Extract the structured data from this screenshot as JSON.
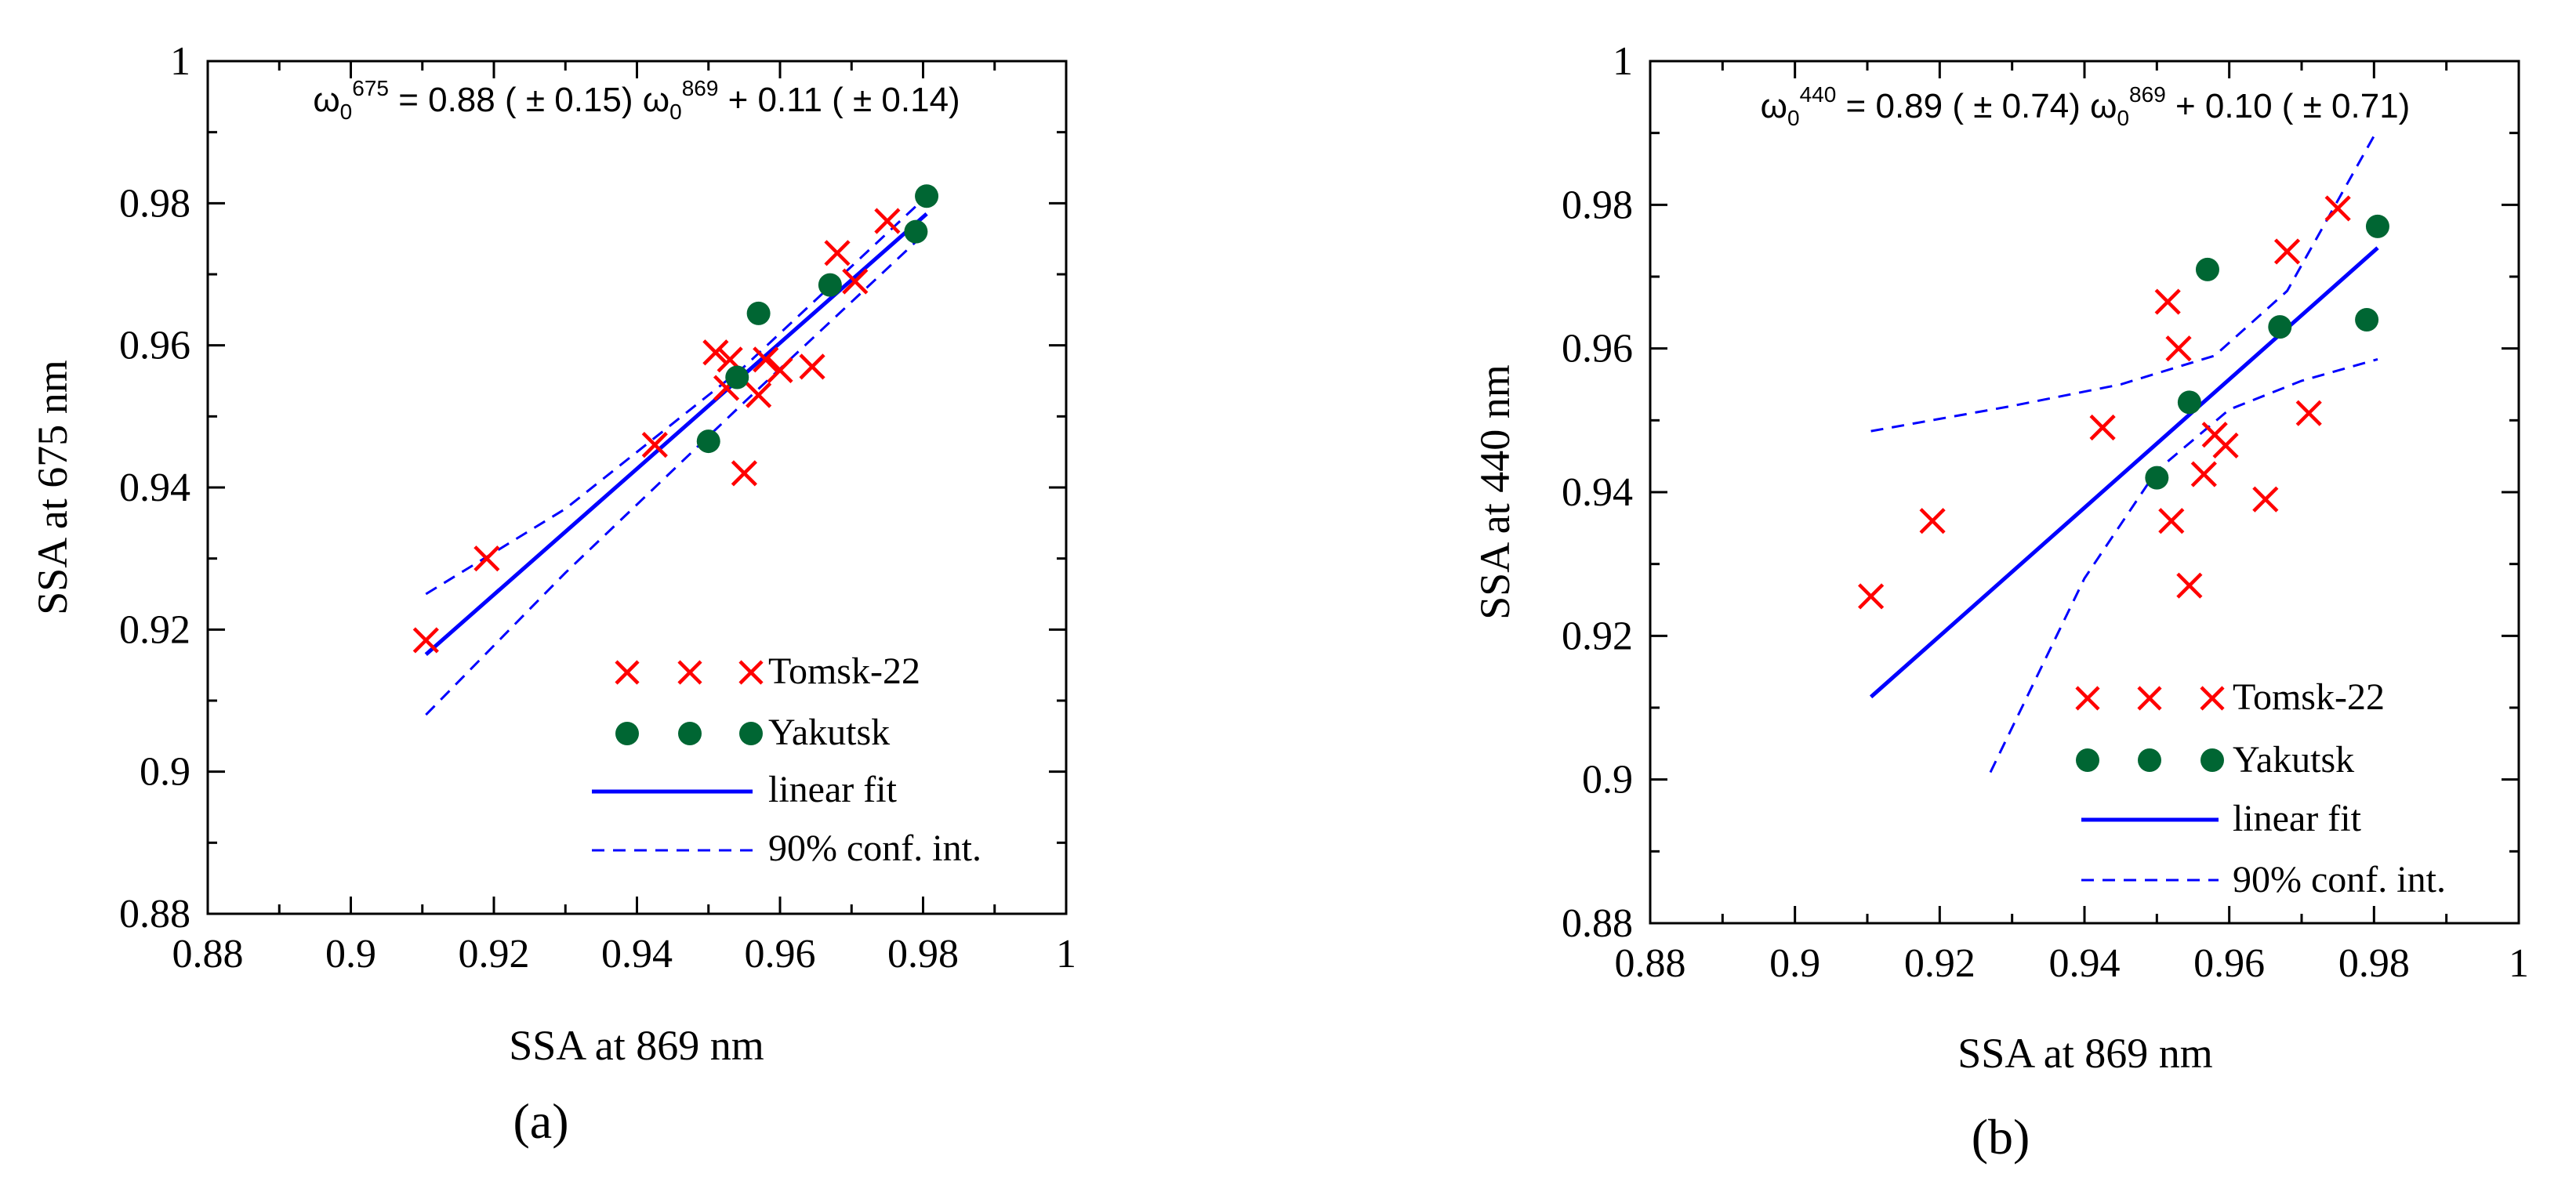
{
  "chart_data": [
    {
      "type": "scatter",
      "panel_label": "(a)",
      "equation": {
        "lhs_symbol": "ω",
        "lhs_sub": "0",
        "lhs_sup": "675",
        "mid": " = 0.88 ( ± 0.15) ",
        "rhs_symbol": "ω",
        "rhs_sub": "0",
        "rhs_sup": "869",
        "tail": " + 0.11 ( ± 0.14)"
      },
      "xlabel": "SSA at 869 nm",
      "ylabel": "SSA at 675 nm",
      "xlim": [
        0.88,
        1.0
      ],
      "ylim": [
        0.88,
        1.0
      ],
      "xticks": [
        "0.88",
        "0.9",
        "0.92",
        "0.94",
        "0.96",
        "0.98",
        "1"
      ],
      "yticks": [
        "0.88",
        "0.9",
        "0.92",
        "0.94",
        "0.96",
        "0.98",
        "1"
      ],
      "legend": {
        "position": "bottom-right",
        "entries": [
          "Tomsk-22",
          "Yakutsk",
          "linear fit",
          "90% conf. int."
        ]
      },
      "colors": {
        "tomsk": "#ff0000",
        "yakutsk": "#006633",
        "fit": "#0000ff"
      },
      "series": [
        {
          "name": "Tomsk-22",
          "marker": "x",
          "points": [
            [
              0.9105,
              0.9185
            ],
            [
              0.919,
              0.93
            ],
            [
              0.9425,
              0.946
            ],
            [
              0.951,
              0.959
            ],
            [
              0.953,
              0.958
            ],
            [
              0.9525,
              0.954
            ],
            [
              0.955,
              0.942
            ],
            [
              0.957,
              0.953
            ],
            [
              0.958,
              0.958
            ],
            [
              0.96,
              0.9565
            ],
            [
              0.9645,
              0.957
            ],
            [
              0.968,
              0.973
            ],
            [
              0.9705,
              0.969
            ],
            [
              0.975,
              0.9775
            ]
          ]
        },
        {
          "name": "Yakutsk",
          "marker": "dot",
          "points": [
            [
              0.95,
              0.9465
            ],
            [
              0.954,
              0.9555
            ],
            [
              0.957,
              0.9645
            ],
            [
              0.967,
              0.9685
            ],
            [
              0.979,
              0.976
            ],
            [
              0.9805,
              0.981
            ]
          ]
        },
        {
          "name": "linear fit",
          "line": [
            [
              0.9105,
              0.9165
            ],
            [
              0.9805,
              0.9785
            ]
          ]
        },
        {
          "name": "90% conf. int. (upper)",
          "line": [
            [
              0.9105,
              0.925
            ],
            [
              0.93,
              0.937
            ],
            [
              0.955,
              0.957
            ],
            [
              0.9805,
              0.981
            ]
          ]
        },
        {
          "name": "90% conf. int. (lower)",
          "line": [
            [
              0.9105,
              0.908
            ],
            [
              0.93,
              0.928
            ],
            [
              0.955,
              0.952
            ],
            [
              0.9805,
              0.976
            ]
          ]
        }
      ]
    },
    {
      "type": "scatter",
      "panel_label": "(b)",
      "equation": {
        "lhs_symbol": "ω",
        "lhs_sub": "0",
        "lhs_sup": "440",
        "mid": " = 0.89 ( ± 0.74) ",
        "rhs_symbol": "ω",
        "rhs_sub": "0",
        "rhs_sup": "869",
        "tail": " + 0.10 ( ± 0.71)"
      },
      "xlabel": "SSA at 869 nm",
      "ylabel": "SSA at 440 nm",
      "xlim": [
        0.88,
        1.0
      ],
      "ylim": [
        0.88,
        1.0
      ],
      "xticks": [
        "0.88",
        "0.9",
        "0.92",
        "0.94",
        "0.96",
        "0.98",
        "1"
      ],
      "yticks": [
        "0.88",
        "0.9",
        "0.92",
        "0.94",
        "0.96",
        "0.98",
        "1"
      ],
      "legend": {
        "position": "bottom-right",
        "entries": [
          "Tomsk-22",
          "Yakutsk",
          "linear fit",
          "90% conf. int."
        ]
      },
      "colors": {
        "tomsk": "#ff0000",
        "yakutsk": "#006633",
        "fit": "#0000ff"
      },
      "series": [
        {
          "name": "Tomsk-22",
          "marker": "x",
          "points": [
            [
              0.9105,
              0.9255
            ],
            [
              0.919,
              0.936
            ],
            [
              0.9425,
              0.949
            ],
            [
              0.9515,
              0.9665
            ],
            [
              0.953,
              0.96
            ],
            [
              0.952,
              0.936
            ],
            [
              0.9545,
              0.927
            ],
            [
              0.9565,
              0.9425
            ],
            [
              0.958,
              0.948
            ],
            [
              0.9595,
              0.9465
            ],
            [
              0.965,
              0.939
            ],
            [
              0.968,
              0.9735
            ],
            [
              0.971,
              0.951
            ],
            [
              0.975,
              0.9795
            ]
          ]
        },
        {
          "name": "Yakutsk",
          "marker": "dot",
          "points": [
            [
              0.95,
              0.942
            ],
            [
              0.9545,
              0.9525
            ],
            [
              0.957,
              0.971
            ],
            [
              0.967,
              0.963
            ],
            [
              0.979,
              0.964
            ],
            [
              0.9805,
              0.977
            ]
          ]
        },
        {
          "name": "linear fit",
          "line": [
            [
              0.9105,
              0.9115
            ],
            [
              0.9805,
              0.974
            ]
          ]
        },
        {
          "name": "90% conf. int. (upper)",
          "line": [
            [
              0.9105,
              0.9485
            ],
            [
              0.93,
              0.952
            ],
            [
              0.945,
              0.955
            ],
            [
              0.958,
              0.959
            ],
            [
              0.968,
              0.968
            ],
            [
              0.9805,
              0.9905
            ]
          ]
        },
        {
          "name": "90% conf. int. (lower)",
          "line": [
            [
              0.927,
              0.901
            ],
            [
              0.94,
              0.928
            ],
            [
              0.95,
              0.943
            ],
            [
              0.96,
              0.9515
            ],
            [
              0.97,
              0.9555
            ],
            [
              0.9805,
              0.9585
            ]
          ]
        }
      ]
    }
  ]
}
